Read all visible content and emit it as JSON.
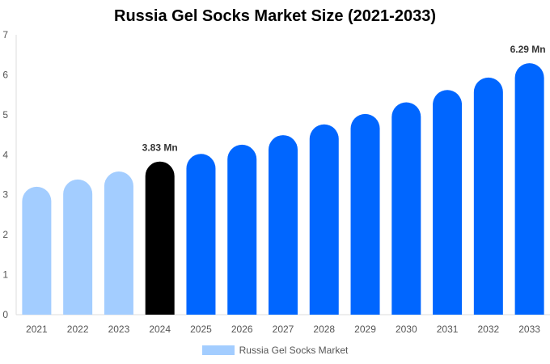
{
  "chart_data": {
    "type": "bar",
    "title": "Russia Gel Socks Market Size (2021-2033)",
    "xlabel": "",
    "ylabel": "",
    "ylim": [
      0,
      7
    ],
    "yticks": [
      "0",
      "1",
      "2",
      "3",
      "4",
      "5",
      "6",
      "7"
    ],
    "categories": [
      "2021",
      "2022",
      "2023",
      "2024",
      "2025",
      "2026",
      "2027",
      "2028",
      "2029",
      "2030",
      "2031",
      "2032",
      "2033"
    ],
    "series": [
      {
        "name": "Russia Gel Socks Market",
        "values": [
          3.2,
          3.38,
          3.58,
          3.83,
          4.02,
          4.25,
          4.49,
          4.76,
          5.02,
          5.31,
          5.62,
          5.93,
          6.29
        ]
      }
    ],
    "bar_colors": {
      "historical": "#a3cdff",
      "base_year": "#000000",
      "forecast": "#0066ff"
    },
    "phases": [
      "historical",
      "historical",
      "historical",
      "base_year",
      "forecast",
      "forecast",
      "forecast",
      "forecast",
      "forecast",
      "forecast",
      "forecast",
      "forecast",
      "forecast"
    ],
    "data_labels": {
      "2024": "3.83 Mn",
      "2033": "6.29 Mn"
    },
    "grid": false,
    "legend_position": "bottom"
  }
}
